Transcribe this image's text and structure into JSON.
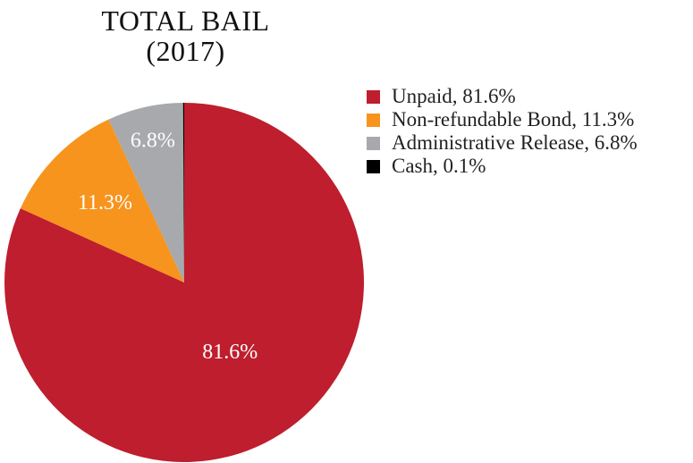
{
  "chart_data": {
    "type": "pie",
    "title_lines": [
      "TOTAL BAIL",
      "(2017)"
    ],
    "slices": [
      {
        "name": "Unpaid",
        "value": 81.6,
        "label": "81.6%",
        "legend": "Unpaid, 81.6%",
        "color": "#be1e2d",
        "label_color": "#ffffff"
      },
      {
        "name": "Non-refundable Bond",
        "value": 11.3,
        "label": "11.3%",
        "legend": "Non-refundable Bond, 11.3%",
        "color": "#f7941d",
        "label_color": "#ffffff"
      },
      {
        "name": "Administrative Release",
        "value": 6.8,
        "label": "6.8%",
        "legend": "Administrative Release, 6.8%",
        "color": "#a7a9ac",
        "label_color": "#ffffff"
      },
      {
        "name": "Cash",
        "value": 0.1,
        "label": "",
        "legend": "Cash, 0.1%",
        "color": "#000000",
        "label_color": "#ffffff"
      }
    ],
    "legend_position": "right",
    "start": "top, clockwise"
  }
}
